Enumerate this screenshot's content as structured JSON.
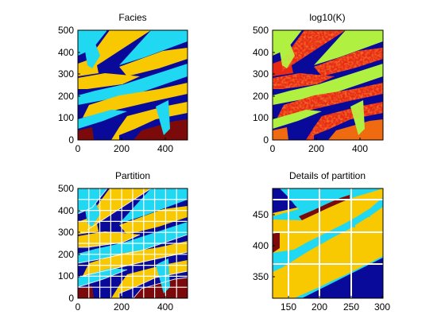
{
  "figure": {
    "background": "#ffffff",
    "colors": {
      "dark_blue": "#0a0a9a",
      "cyan": "#20d8f2",
      "yellow": "#f8c800",
      "maroon": "#7c0a0a",
      "orange": "#f06a10",
      "red": "#e82a14",
      "green": "#b0f040",
      "grid": "#ffffff"
    }
  },
  "chart_data": [
    {
      "type": "heatmap",
      "title": "Facies",
      "xlim": [
        0,
        500
      ],
      "ylim": [
        0,
        500
      ],
      "x_ticks": [
        "0",
        "200",
        "400"
      ],
      "y_ticks": [
        "0",
        "100",
        "200",
        "300",
        "400",
        "500"
      ],
      "x_tick_values": [
        0,
        200,
        400
      ],
      "y_tick_values": [
        0,
        100,
        200,
        300,
        400,
        500
      ],
      "grid": false,
      "colormap": [
        "#0a0a9a",
        "#20d8f2",
        "#f8c800",
        "#7c0a0a"
      ]
    },
    {
      "type": "heatmap",
      "title": "log10(K)",
      "xlim": [
        0,
        500
      ],
      "ylim": [
        0,
        500
      ],
      "x_ticks": [
        "0",
        "200",
        "400"
      ],
      "y_ticks": [
        "0",
        "100",
        "200",
        "300",
        "400",
        "500"
      ],
      "x_tick_values": [
        0,
        200,
        400
      ],
      "y_tick_values": [
        0,
        100,
        200,
        300,
        400,
        500
      ],
      "grid": false,
      "colormap": [
        "#0a0a9a",
        "#b0f040",
        "#f06a10",
        "#e82a14"
      ]
    },
    {
      "type": "heatmap",
      "title": "Partition",
      "xlim": [
        0,
        500
      ],
      "ylim": [
        0,
        500
      ],
      "x_ticks": [
        "0",
        "200",
        "400"
      ],
      "y_ticks": [
        "0",
        "100",
        "200",
        "300",
        "400",
        "500"
      ],
      "x_tick_values": [
        0,
        200,
        400
      ],
      "y_tick_values": [
        0,
        100,
        200,
        300,
        400,
        500
      ],
      "grid": true,
      "grid_spacing": 50,
      "colormap": [
        "#0a0a9a",
        "#20d8f2",
        "#f8c800",
        "#7c0a0a"
      ]
    },
    {
      "type": "heatmap",
      "title": "Details of partition",
      "xlim": [
        125,
        300
      ],
      "ylim": [
        320,
        490
      ],
      "x_ticks": [
        "150",
        "200",
        "250",
        "300"
      ],
      "y_ticks": [
        "350",
        "400",
        "450"
      ],
      "x_tick_values": [
        150,
        200,
        250,
        300
      ],
      "y_tick_values": [
        350,
        400,
        450
      ],
      "grid": true,
      "grid_spacing": 50,
      "colormap": [
        "#0a0a9a",
        "#20d8f2",
        "#f8c800",
        "#7c0a0a"
      ]
    }
  ]
}
